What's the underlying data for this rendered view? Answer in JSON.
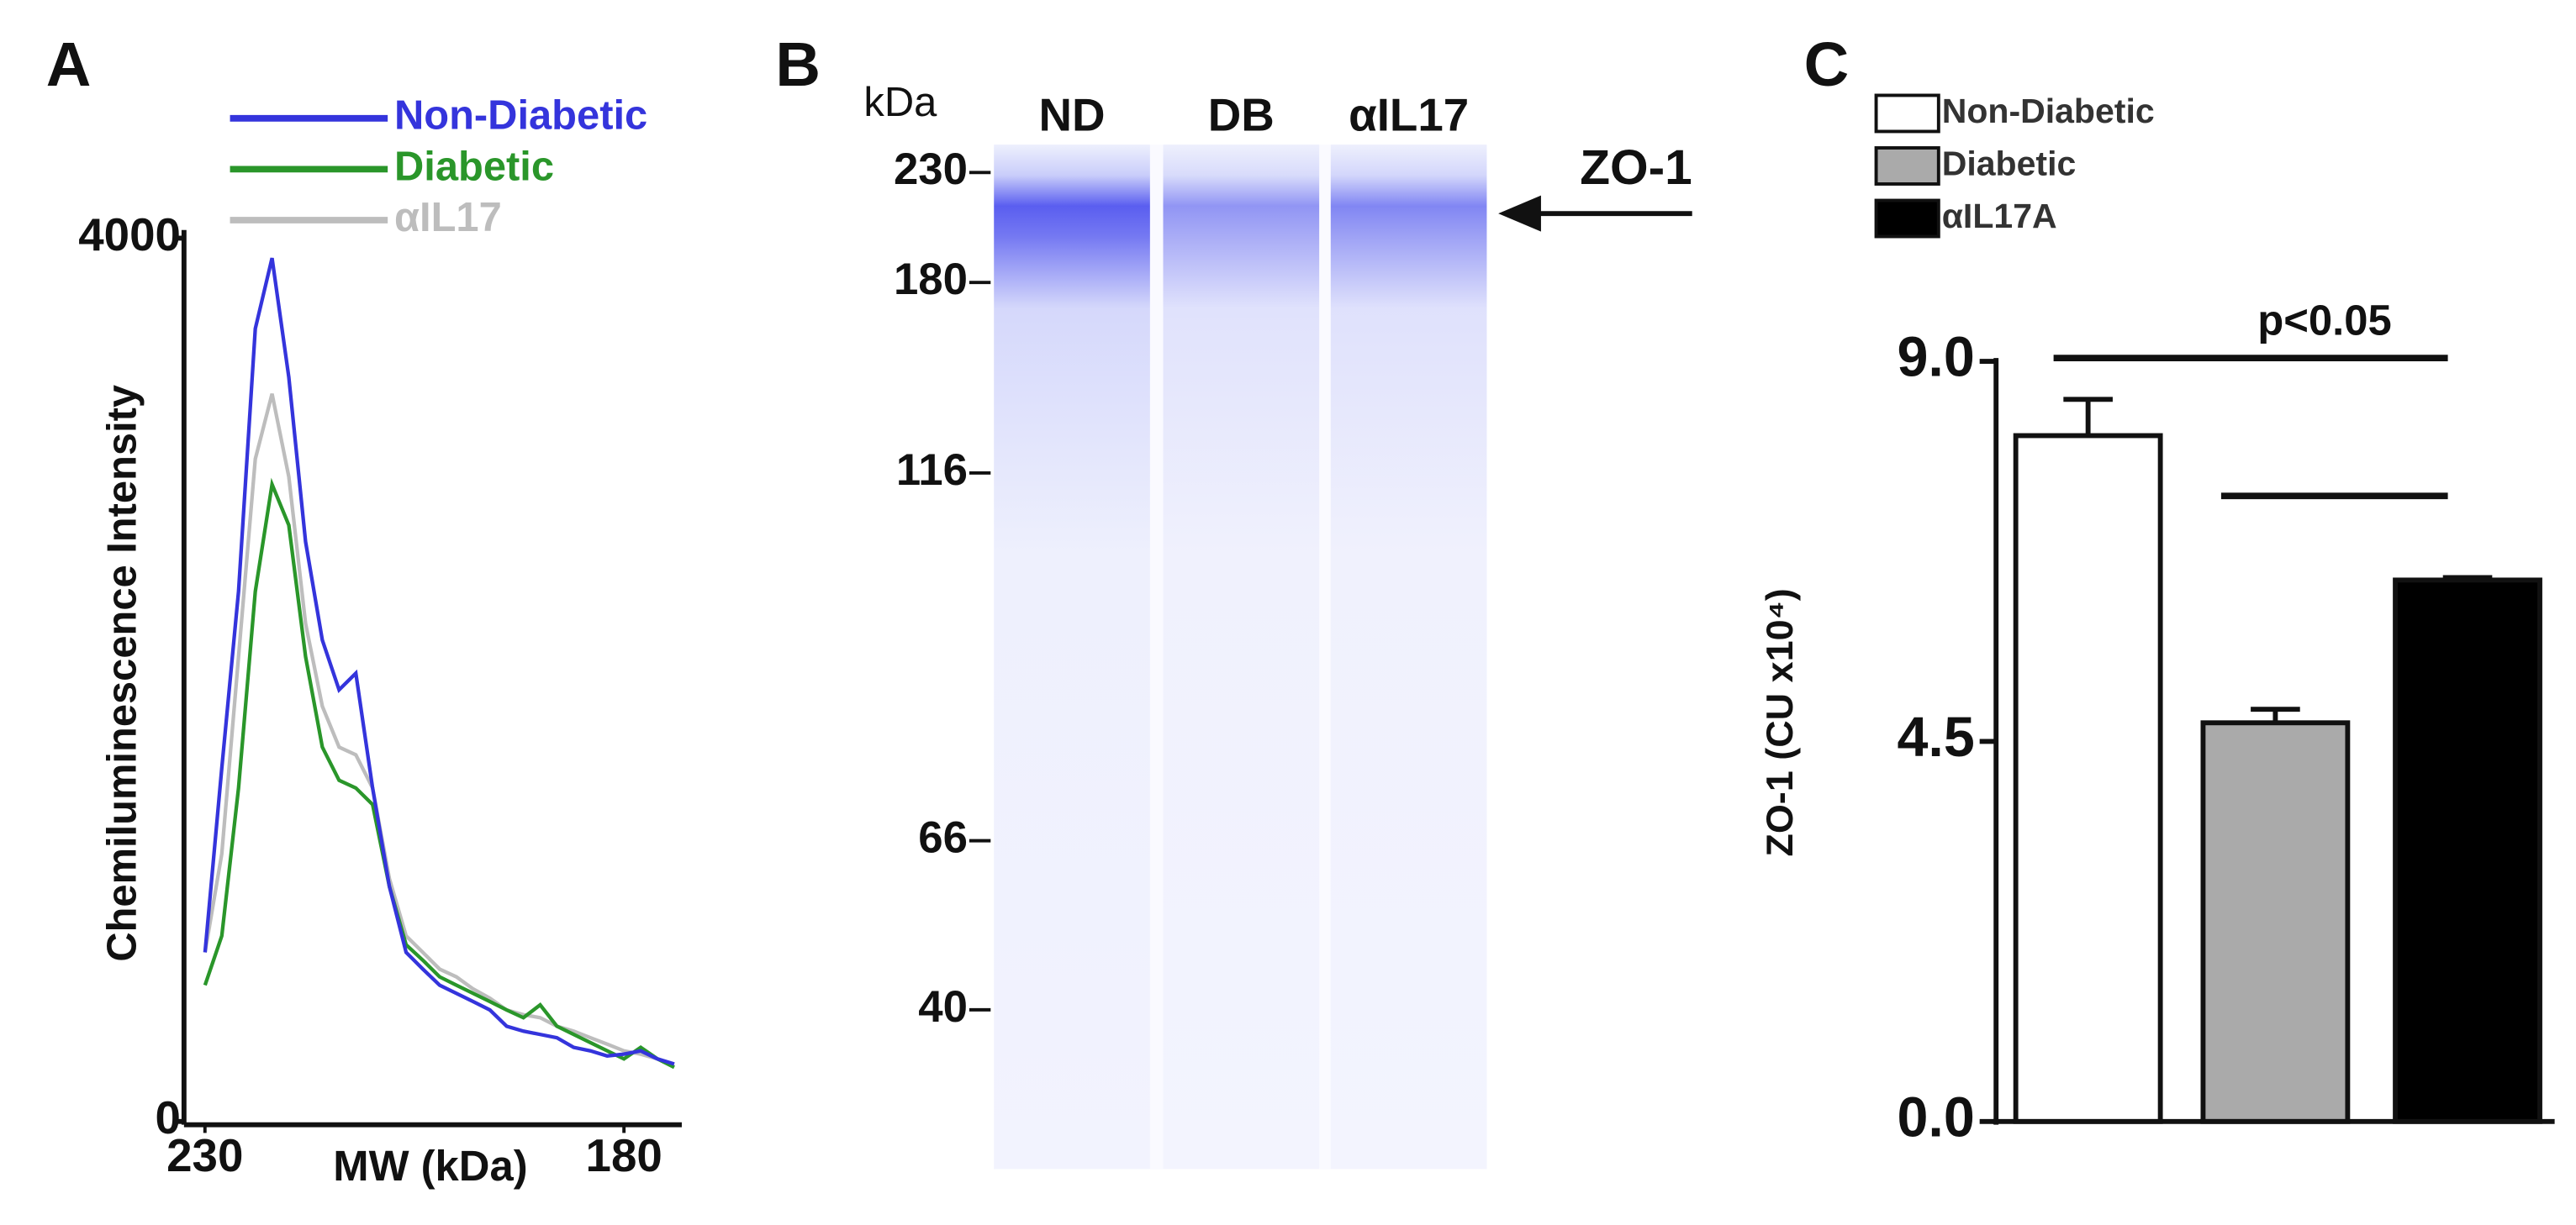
{
  "chart_data": [
    {
      "type": "line",
      "panel": "A",
      "x_label": "MW (kDa)",
      "y_label": "Chemiluminescence Intensity",
      "x": [
        230,
        228,
        226,
        224,
        222,
        220,
        218,
        216,
        214,
        212,
        210,
        208,
        206,
        204,
        202,
        200,
        198,
        196,
        194,
        192,
        190,
        188,
        186,
        184,
        182,
        180,
        178,
        176,
        174
      ],
      "series": [
        {
          "name": "Non-Diabetic",
          "color": "#3434dc",
          "values": [
            766,
            1600,
            2400,
            3590,
            3910,
            3370,
            2625,
            2180,
            1955,
            2030,
            1510,
            1065,
            766,
            690,
            617,
            580,
            543,
            505,
            431,
            409,
            394,
            379,
            335,
            320,
            297,
            305,
            320,
            283,
            260
          ]
        },
        {
          "name": "Diabetic",
          "color": "#2a962a",
          "values": [
            617,
            840,
            1510,
            2400,
            2885,
            2700,
            2105,
            1695,
            1545,
            1510,
            1435,
            1065,
            800,
            730,
            655,
            617,
            580,
            543,
            505,
            470,
            528,
            431,
            394,
            357,
            320,
            283,
            335,
            283,
            245
          ]
        },
        {
          "name": "αIL17",
          "color": "#bdbdbd",
          "values": [
            766,
            1212,
            2105,
            3000,
            3295,
            2920,
            2255,
            1880,
            1695,
            1660,
            1510,
            1100,
            840,
            766,
            690,
            655,
            600,
            558,
            505,
            483,
            470,
            431,
            409,
            379,
            350,
            320,
            305,
            283,
            260
          ]
        }
      ],
      "xlim": [
        232.5,
        173.1
      ],
      "xticks": [
        230,
        180
      ],
      "ylim": [
        0,
        4000
      ],
      "yticks": [
        0,
        4000
      ]
    },
    {
      "type": "gel",
      "panel": "B",
      "unit": "kDa",
      "lanes": [
        "ND",
        "DB",
        "αIL17"
      ],
      "markers": [
        230,
        180,
        116,
        66,
        40
      ],
      "annotation": "ZO-1"
    },
    {
      "type": "bar",
      "panel": "C",
      "y_label": "ZO-1 (CU x10⁴)",
      "categories": [
        "Non-Diabetic",
        "Diabetic",
        "αIL17A"
      ],
      "values": [
        8.12,
        4.72,
        6.41
      ],
      "errors": [
        0.43,
        0.16,
        0.03
      ],
      "colors": [
        "#ffffff",
        "#aaaaaa",
        "#000000"
      ],
      "ylim": [
        0,
        9
      ],
      "yticks": [
        {
          "value": 0,
          "label": "0.0"
        },
        4.5,
        {
          "value": 9,
          "label": "9.0"
        }
      ],
      "annotation": "p<0.05"
    }
  ]
}
